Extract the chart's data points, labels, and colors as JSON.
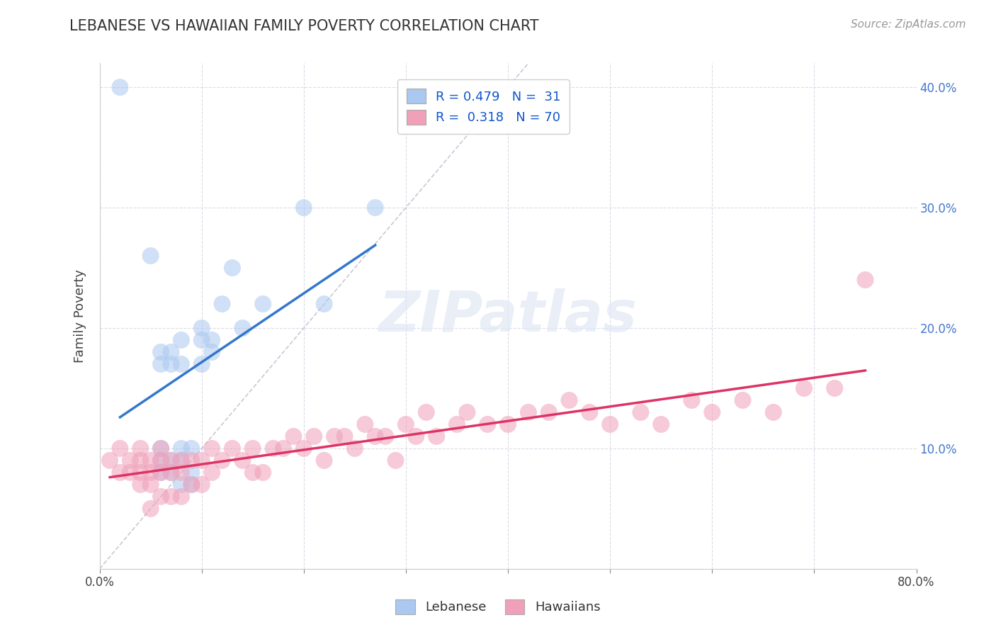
{
  "title": "LEBANESE VS HAWAIIAN FAMILY POVERTY CORRELATION CHART",
  "source": "Source: ZipAtlas.com",
  "ylabel": "Family Poverty",
  "xlim": [
    0,
    0.8
  ],
  "ylim": [
    0,
    0.42
  ],
  "xticks": [
    0.0,
    0.1,
    0.2,
    0.3,
    0.4,
    0.5,
    0.6,
    0.7,
    0.8
  ],
  "xticklabels": [
    "0.0%",
    "",
    "",
    "",
    "",
    "",
    "",
    "",
    "80.0%"
  ],
  "yticks": [
    0.0,
    0.1,
    0.2,
    0.3,
    0.4
  ],
  "right_yticklabels": [
    "",
    "10.0%",
    "20.0%",
    "30.0%",
    "40.0%"
  ],
  "lebanese_color": "#aac8f0",
  "hawaiian_color": "#f0a0b8",
  "lebanese_line_color": "#3377cc",
  "hawaiian_line_color": "#dd3366",
  "ref_line_color": "#bbbbcc",
  "legend_label1": "R = 0.479   N =  31",
  "legend_label2": "R =  0.318   N = 70",
  "watermark": "ZIPatlas",
  "lebanese_x": [
    0.02,
    0.05,
    0.06,
    0.06,
    0.06,
    0.06,
    0.06,
    0.07,
    0.07,
    0.07,
    0.07,
    0.08,
    0.08,
    0.08,
    0.08,
    0.08,
    0.09,
    0.09,
    0.09,
    0.1,
    0.1,
    0.1,
    0.11,
    0.11,
    0.12,
    0.13,
    0.14,
    0.16,
    0.2,
    0.22,
    0.27
  ],
  "lebanese_y": [
    0.4,
    0.26,
    0.08,
    0.09,
    0.1,
    0.17,
    0.18,
    0.08,
    0.09,
    0.17,
    0.18,
    0.07,
    0.09,
    0.1,
    0.17,
    0.19,
    0.07,
    0.08,
    0.1,
    0.17,
    0.19,
    0.2,
    0.18,
    0.19,
    0.22,
    0.25,
    0.2,
    0.22,
    0.3,
    0.22,
    0.3
  ],
  "hawaiian_x": [
    0.01,
    0.02,
    0.02,
    0.03,
    0.03,
    0.04,
    0.04,
    0.04,
    0.04,
    0.05,
    0.05,
    0.05,
    0.05,
    0.06,
    0.06,
    0.06,
    0.06,
    0.07,
    0.07,
    0.07,
    0.08,
    0.08,
    0.08,
    0.09,
    0.09,
    0.1,
    0.1,
    0.11,
    0.11,
    0.12,
    0.13,
    0.14,
    0.15,
    0.15,
    0.16,
    0.17,
    0.18,
    0.19,
    0.2,
    0.21,
    0.22,
    0.23,
    0.24,
    0.25,
    0.26,
    0.27,
    0.28,
    0.29,
    0.3,
    0.31,
    0.32,
    0.33,
    0.35,
    0.36,
    0.38,
    0.4,
    0.42,
    0.44,
    0.46,
    0.48,
    0.5,
    0.53,
    0.55,
    0.58,
    0.6,
    0.63,
    0.66,
    0.69,
    0.72,
    0.75
  ],
  "hawaiian_y": [
    0.09,
    0.08,
    0.1,
    0.08,
    0.09,
    0.07,
    0.08,
    0.09,
    0.1,
    0.05,
    0.07,
    0.08,
    0.09,
    0.06,
    0.08,
    0.09,
    0.1,
    0.06,
    0.08,
    0.09,
    0.06,
    0.08,
    0.09,
    0.07,
    0.09,
    0.07,
    0.09,
    0.08,
    0.1,
    0.09,
    0.1,
    0.09,
    0.08,
    0.1,
    0.08,
    0.1,
    0.1,
    0.11,
    0.1,
    0.11,
    0.09,
    0.11,
    0.11,
    0.1,
    0.12,
    0.11,
    0.11,
    0.09,
    0.12,
    0.11,
    0.13,
    0.11,
    0.12,
    0.13,
    0.12,
    0.12,
    0.13,
    0.13,
    0.14,
    0.13,
    0.12,
    0.13,
    0.12,
    0.14,
    0.13,
    0.14,
    0.13,
    0.15,
    0.15,
    0.24
  ]
}
